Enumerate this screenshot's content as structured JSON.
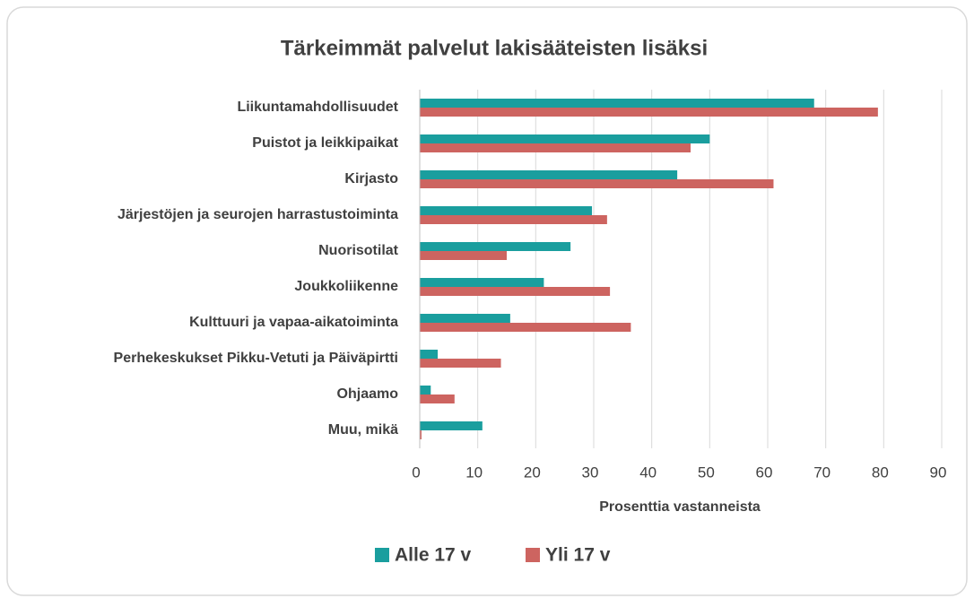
{
  "chart_data": {
    "type": "hbar",
    "title": "Tärkeimmät palvelut lakisääteisten lisäksi",
    "xlabel": "Prosenttia vastanneista",
    "categories": [
      "Liikuntamahdollisuudet",
      "Puistot ja leikkipaikat",
      "Kirjasto",
      "Järjestöjen ja seurojen harrastustoiminta",
      "Nuorisotilat",
      "Joukkoliikenne",
      "Kulttuuri ja vapaa-aikatoiminta",
      "Perhekeskukset Pikku-Vetuti ja Päiväpirtti",
      "Ohjaamo",
      "Muu, mikä"
    ],
    "series": [
      {
        "name": "Alle 17 v",
        "color": "#1a9e9e",
        "values": [
          68,
          50,
          44.4,
          29.7,
          26,
          21.4,
          15.6,
          3.1,
          1.9,
          10.8
        ]
      },
      {
        "name": "Yli 17 v",
        "color": "#cd6460",
        "values": [
          79,
          46.7,
          61,
          32.3,
          15,
          32.8,
          36.4,
          14,
          6,
          0.3
        ]
      }
    ],
    "xlim": [
      0,
      90
    ],
    "xticks": [
      0,
      10,
      20,
      30,
      40,
      50,
      60,
      70,
      80,
      90
    ],
    "grid": true,
    "legend": "bottom"
  }
}
